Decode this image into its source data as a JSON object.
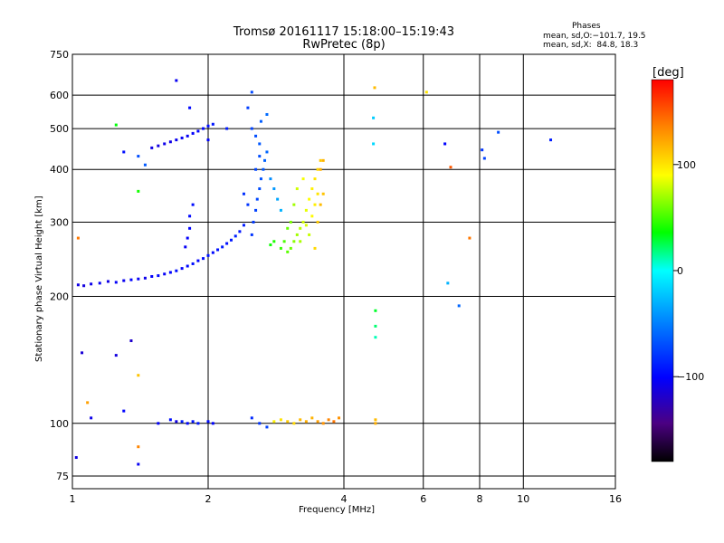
{
  "chart_data": {
    "type": "scatter",
    "title": "Tromsø 20161117 15:18:00–15:19:43",
    "subtitle": "RwPretec (8p)",
    "xlabel": "Frequency [MHz]",
    "ylabel": "Stationary phase Virtual Height [km]",
    "x_scale": "log",
    "y_scale": "log",
    "xlim": [
      1,
      16
    ],
    "ylim": [
      70,
      750
    ],
    "x_ticks": [
      "1",
      "2",
      "4",
      "6",
      "8",
      "10",
      "16"
    ],
    "y_ticks": [
      "75",
      "100",
      "200",
      "300",
      "400",
      "500",
      "600",
      "750"
    ],
    "grid": true,
    "phase_header": "Phases",
    "phase_stats": [
      "mean, sd,O:−101.7, 19.5",
      "mean, sd,X:  84.8, 18.3"
    ],
    "colorbar": {
      "label": "[deg]",
      "range": [
        -180,
        180
      ],
      "ticks": [
        "100",
        "0",
        "−100"
      ]
    },
    "series": [
      {
        "points": [
          [
            1.03,
            213,
            -110
          ],
          [
            1.06,
            212,
            -112
          ],
          [
            1.1,
            214,
            -108
          ],
          [
            1.15,
            215,
            -105
          ],
          [
            1.2,
            217,
            -110
          ],
          [
            1.25,
            216,
            -103
          ],
          [
            1.3,
            218,
            -106
          ],
          [
            1.35,
            219,
            -100
          ],
          [
            1.4,
            220,
            -104
          ],
          [
            1.45,
            221,
            -108
          ],
          [
            1.5,
            223,
            -102
          ],
          [
            1.55,
            224,
            -98
          ],
          [
            1.6,
            226,
            -104
          ],
          [
            1.65,
            228,
            -100
          ],
          [
            1.7,
            230,
            -96
          ],
          [
            1.75,
            233,
            -102
          ],
          [
            1.8,
            236,
            -98
          ],
          [
            1.85,
            239,
            -95
          ],
          [
            1.9,
            243,
            -100
          ],
          [
            1.95,
            246,
            -96
          ],
          [
            2.0,
            250,
            -92
          ],
          [
            2.05,
            254,
            -98
          ],
          [
            2.1,
            258,
            -94
          ],
          [
            2.15,
            262,
            -90
          ],
          [
            2.2,
            267,
            -95
          ],
          [
            2.25,
            272,
            -92
          ],
          [
            2.3,
            278,
            -88
          ],
          [
            2.35,
            285,
            -93
          ],
          [
            2.4,
            295,
            -90
          ],
          [
            1.5,
            450,
            -110
          ],
          [
            1.55,
            455,
            -112
          ],
          [
            1.6,
            460,
            -108
          ],
          [
            1.65,
            465,
            -110
          ],
          [
            1.7,
            470,
            -106
          ],
          [
            1.75,
            475,
            -104
          ],
          [
            1.8,
            480,
            -105
          ],
          [
            1.85,
            487,
            -102
          ],
          [
            1.9,
            493,
            -100
          ],
          [
            1.95,
            500,
            -98
          ],
          [
            2.0,
            507,
            -95
          ],
          [
            2.05,
            512,
            -92
          ],
          [
            1.82,
            310,
            -98
          ],
          [
            1.82,
            290,
            -100
          ],
          [
            1.8,
            275,
            -102
          ],
          [
            1.78,
            262,
            -104
          ],
          [
            1.85,
            330,
            -96
          ],
          [
            2.5,
            280,
            -80
          ],
          [
            2.52,
            300,
            -78
          ],
          [
            2.55,
            320,
            -75
          ],
          [
            2.57,
            340,
            -72
          ],
          [
            2.6,
            360,
            -70
          ],
          [
            2.62,
            380,
            -68
          ],
          [
            2.65,
            400,
            -65
          ],
          [
            2.67,
            420,
            -62
          ],
          [
            2.7,
            440,
            -60
          ],
          [
            2.6,
            460,
            -66
          ],
          [
            2.55,
            480,
            -70
          ],
          [
            2.5,
            500,
            -74
          ],
          [
            2.62,
            520,
            -64
          ],
          [
            2.7,
            540,
            -58
          ],
          [
            2.45,
            560,
            -76
          ],
          [
            2.5,
            610,
            -72
          ],
          [
            2.4,
            350,
            -82
          ],
          [
            2.45,
            330,
            -80
          ],
          [
            2.55,
            400,
            -74
          ],
          [
            2.6,
            430,
            -70
          ],
          [
            2.75,
            380,
            -45
          ],
          [
            2.8,
            360,
            -40
          ],
          [
            2.85,
            340,
            -35
          ],
          [
            2.9,
            320,
            -30
          ],
          [
            1.7,
            650,
            -105
          ],
          [
            1.82,
            560,
            -98
          ],
          [
            2.0,
            470,
            -100
          ],
          [
            2.2,
            500,
            -90
          ],
          [
            1.02,
            83,
            -110
          ],
          [
            1.05,
            147,
            -115
          ],
          [
            1.1,
            103,
            -108
          ],
          [
            1.25,
            145,
            -112
          ],
          [
            1.3,
            107,
            -100
          ],
          [
            1.35,
            157,
            -118
          ],
          [
            1.4,
            80,
            -105
          ],
          [
            1.55,
            100,
            -102
          ],
          [
            1.65,
            102,
            -95
          ],
          [
            1.7,
            101,
            -110
          ],
          [
            1.75,
            101,
            -90
          ],
          [
            1.8,
            100,
            -98
          ],
          [
            1.85,
            101,
            -94
          ],
          [
            1.9,
            100,
            -92
          ],
          [
            2.0,
            101,
            -96
          ],
          [
            2.05,
            100,
            -100
          ],
          [
            2.5,
            103,
            -85
          ],
          [
            2.6,
            100,
            -80
          ],
          [
            2.7,
            98,
            -75
          ],
          [
            1.4,
            430,
            -70
          ],
          [
            1.45,
            410,
            -65
          ],
          [
            6.7,
            460,
            -100
          ],
          [
            6.8,
            215,
            -30
          ],
          [
            7.2,
            190,
            -60
          ],
          [
            8.1,
            445,
            -80
          ],
          [
            8.2,
            425,
            -75
          ],
          [
            8.8,
            490,
            -70
          ],
          [
            11.5,
            470,
            -90
          ],
          [
            4.65,
            530,
            -20
          ],
          [
            4.65,
            460,
            -15
          ],
          [
            1.3,
            440,
            -95
          ]
        ]
      },
      {
        "points": [
          [
            3.05,
            260,
            60
          ],
          [
            3.1,
            270,
            65
          ],
          [
            3.15,
            280,
            70
          ],
          [
            3.2,
            290,
            75
          ],
          [
            3.25,
            300,
            80
          ],
          [
            3.3,
            320,
            85
          ],
          [
            3.35,
            340,
            90
          ],
          [
            3.4,
            360,
            95
          ],
          [
            3.45,
            380,
            100
          ],
          [
            3.5,
            400,
            105
          ],
          [
            3.55,
            420,
            110
          ],
          [
            3.4,
            310,
            92
          ],
          [
            3.45,
            330,
            96
          ],
          [
            3.5,
            350,
            100
          ],
          [
            3.3,
            295,
            82
          ],
          [
            3.2,
            270,
            72
          ],
          [
            3.35,
            280,
            78
          ],
          [
            3.0,
            255,
            55
          ],
          [
            3.25,
            380,
            88
          ],
          [
            3.15,
            360,
            80
          ],
          [
            3.1,
            330,
            70
          ],
          [
            3.05,
            300,
            62
          ],
          [
            3.0,
            290,
            58
          ],
          [
            2.95,
            270,
            52
          ],
          [
            2.9,
            260,
            48
          ],
          [
            2.8,
            270,
            42
          ],
          [
            2.75,
            265,
            38
          ],
          [
            3.5,
            300,
            110
          ],
          [
            3.55,
            330,
            115
          ],
          [
            3.6,
            350,
            112
          ],
          [
            3.45,
            260,
            104
          ],
          [
            3.6,
            420,
            118
          ],
          [
            3.55,
            400,
            120
          ],
          [
            2.8,
            101,
            95
          ],
          [
            2.9,
            102,
            100
          ],
          [
            3.0,
            101,
            110
          ],
          [
            3.1,
            100,
            105
          ],
          [
            3.2,
            102,
            115
          ],
          [
            3.3,
            101,
            120
          ],
          [
            3.4,
            103,
            118
          ],
          [
            3.5,
            101,
            125
          ],
          [
            3.6,
            100,
            130
          ],
          [
            3.7,
            102,
            135
          ],
          [
            3.8,
            101,
            140
          ],
          [
            3.9,
            103,
            130
          ],
          [
            4.7,
            102,
            115
          ],
          [
            4.7,
            100,
            120
          ],
          [
            1.03,
            275,
            140
          ],
          [
            1.08,
            112,
            125
          ],
          [
            1.25,
            510,
            35
          ],
          [
            1.4,
            130,
            112
          ],
          [
            1.4,
            88,
            135
          ],
          [
            4.68,
            625,
            115
          ],
          [
            6.1,
            610,
            100
          ],
          [
            6.9,
            405,
            150
          ],
          [
            7.6,
            275,
            140
          ],
          [
            4.7,
            185,
            30
          ],
          [
            4.7,
            170,
            20
          ],
          [
            4.7,
            160,
            10
          ],
          [
            1.4,
            355,
            40
          ]
        ]
      }
    ]
  }
}
